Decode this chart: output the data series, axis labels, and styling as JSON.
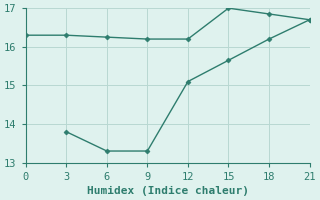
{
  "line1_x": [
    0,
    3,
    6,
    9,
    12,
    15,
    18,
    21
  ],
  "line1_y": [
    16.3,
    16.3,
    16.25,
    16.2,
    16.2,
    17.0,
    16.85,
    16.7
  ],
  "line2_x": [
    3,
    6,
    9,
    12,
    15,
    18,
    21
  ],
  "line2_y": [
    13.8,
    13.3,
    13.3,
    15.1,
    15.65,
    16.2,
    16.7
  ],
  "line_color": "#2e7d6e",
  "bg_color": "#dff2ee",
  "grid_color": "#b8d8d2",
  "axis_color": "#2e7d6e",
  "xlabel": "Humidex (Indice chaleur)",
  "xlim": [
    0,
    21
  ],
  "ylim": [
    13,
    17
  ],
  "xticks": [
    0,
    3,
    6,
    9,
    12,
    15,
    18,
    21
  ],
  "yticks": [
    13,
    14,
    15,
    16,
    17
  ],
  "marker": "D",
  "marker_size": 2.5,
  "line_width": 1.0,
  "tick_font_size": 7.5,
  "label_font_size": 8
}
